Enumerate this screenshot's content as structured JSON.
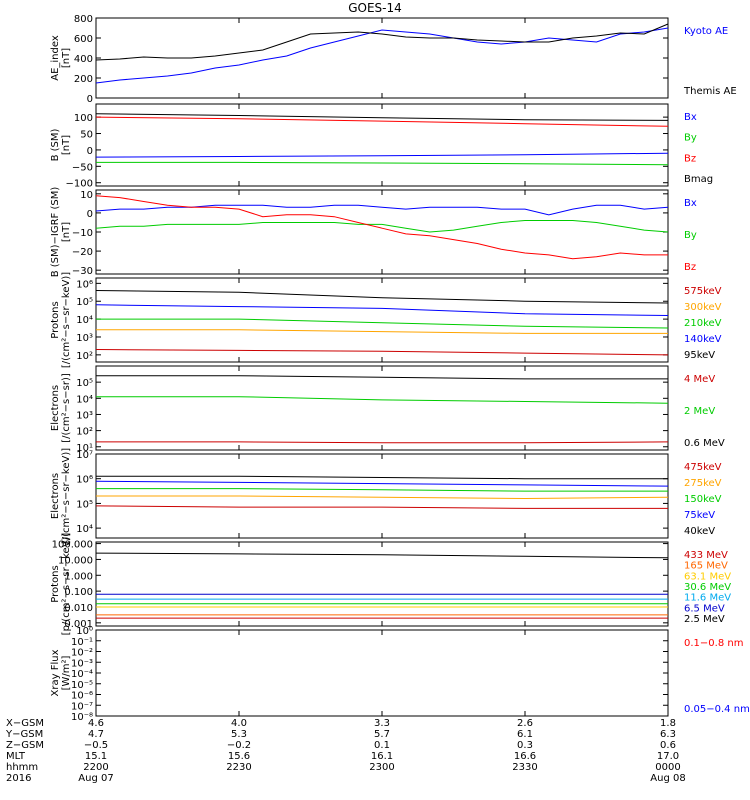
{
  "title": "GOES-14",
  "chart_data": [
    {
      "type": "line",
      "id": "ae",
      "ylabel": [
        "AE_index",
        "[nT]"
      ],
      "ylim": [
        0,
        800
      ],
      "scale": "linear",
      "ticks": [
        0,
        200,
        400,
        600,
        800
      ],
      "tick_labels": [
        "0",
        "200",
        "400",
        "600",
        "800"
      ],
      "x": [
        0,
        5,
        10,
        15,
        20,
        25,
        30,
        35,
        40,
        45,
        50,
        55,
        60,
        65,
        70,
        75,
        80,
        85,
        90,
        95,
        100,
        105,
        110,
        115,
        120
      ],
      "series": [
        {
          "name": "Kyoto AE",
          "color": "#0000ff",
          "values": [
            150,
            180,
            200,
            220,
            250,
            300,
            330,
            380,
            420,
            500,
            560,
            620,
            680,
            660,
            640,
            600,
            560,
            540,
            560,
            600,
            580,
            560,
            640,
            660,
            700
          ]
        },
        {
          "name": "Themis AE",
          "color": "#000000",
          "values": [
            380,
            390,
            410,
            400,
            400,
            420,
            450,
            480,
            560,
            640,
            650,
            660,
            640,
            610,
            600,
            600,
            580,
            570,
            560,
            560,
            600,
            620,
            650,
            640,
            740
          ]
        }
      ]
    },
    {
      "type": "line",
      "id": "bsm",
      "ylabel": [
        "B (SM)",
        "[nT]"
      ],
      "ylim": [
        -110,
        140
      ],
      "scale": "linear",
      "ticks": [
        -100,
        -50,
        0,
        50,
        100
      ],
      "tick_labels": [
        "−100",
        "−50",
        "0",
        "50",
        "100"
      ],
      "x": [
        0,
        30,
        60,
        90,
        120
      ],
      "series": [
        {
          "name": "Bx",
          "color": "#0000ff",
          "values": [
            -22,
            -20,
            -18,
            -15,
            -10
          ]
        },
        {
          "name": "By",
          "color": "#00cc00",
          "values": [
            -38,
            -38,
            -40,
            -42,
            -45
          ]
        },
        {
          "name": "Bz",
          "color": "#ff0000",
          "values": [
            100,
            95,
            88,
            80,
            72
          ]
        },
        {
          "name": "Bmag",
          "color": "#000000",
          "values": [
            110,
            105,
            98,
            92,
            90
          ]
        }
      ]
    },
    {
      "type": "line",
      "id": "bigrf",
      "ylabel": [
        "B (SM)−IGRF (SM)",
        "[nT]"
      ],
      "ylim": [
        -32,
        12
      ],
      "scale": "linear",
      "ticks": [
        -30,
        -20,
        -10,
        0,
        10
      ],
      "tick_labels": [
        "−30",
        "−20",
        "−10",
        "0",
        "10"
      ],
      "x": [
        0,
        5,
        10,
        15,
        20,
        25,
        30,
        35,
        40,
        45,
        50,
        55,
        60,
        65,
        70,
        75,
        80,
        85,
        90,
        95,
        100,
        105,
        110,
        115,
        120
      ],
      "series": [
        {
          "name": "Bx",
          "color": "#0000ff",
          "values": [
            1,
            2,
            2,
            3,
            3,
            4,
            4,
            4,
            3,
            3,
            4,
            4,
            3,
            2,
            3,
            3,
            3,
            2,
            2,
            -1,
            2,
            4,
            4,
            2,
            3
          ]
        },
        {
          "name": "By",
          "color": "#00cc00",
          "values": [
            -8,
            -7,
            -7,
            -6,
            -6,
            -6,
            -6,
            -5,
            -5,
            -5,
            -5,
            -6,
            -6,
            -8,
            -10,
            -9,
            -7,
            -5,
            -4,
            -4,
            -4,
            -5,
            -7,
            -9,
            -10
          ]
        },
        {
          "name": "Bz",
          "color": "#ff0000",
          "values": [
            9,
            8,
            6,
            4,
            3,
            3,
            2,
            -2,
            -1,
            -1,
            -2,
            -5,
            -8,
            -11,
            -12,
            -14,
            -16,
            -19,
            -21,
            -22,
            -24,
            -23,
            -21,
            -22,
            -22
          ]
        }
      ]
    },
    {
      "type": "line",
      "id": "protons_low",
      "ylabel": [
        "Protons",
        "[/(cm²−s−sr−keV)]"
      ],
      "ylim_log": [
        1.6,
        6.3
      ],
      "scale": "log",
      "ticks": [
        2,
        3,
        4,
        5,
        6
      ],
      "tick_labels": [
        "10²",
        "10³",
        "10⁴",
        "10⁵",
        "10⁶"
      ],
      "x": [
        0,
        30,
        60,
        90,
        120
      ],
      "series": [
        {
          "name": "575keV",
          "color": "#cc0000",
          "values": [
            2.3,
            2.25,
            2.2,
            2.1,
            2.0
          ]
        },
        {
          "name": "300keV",
          "color": "#ffa500",
          "values": [
            3.4,
            3.4,
            3.3,
            3.2,
            3.2
          ]
        },
        {
          "name": "210keV",
          "color": "#00cc00",
          "values": [
            4.0,
            4.0,
            3.8,
            3.6,
            3.5
          ]
        },
        {
          "name": "140keV",
          "color": "#0000ff",
          "values": [
            4.8,
            4.7,
            4.6,
            4.3,
            4.2
          ]
        },
        {
          "name": "95keV",
          "color": "#000000",
          "values": [
            5.6,
            5.5,
            5.2,
            5.0,
            4.9
          ]
        }
      ]
    },
    {
      "type": "line",
      "id": "electrons_high",
      "ylabel": [
        "Electrons",
        "[/(cm²−s−sr)]"
      ],
      "ylim_log": [
        0.8,
        6.0
      ],
      "scale": "log",
      "ticks": [
        1,
        2,
        3,
        4,
        5
      ],
      "tick_labels": [
        "10¹",
        "10²",
        "10³",
        "10⁴",
        "10⁵"
      ],
      "x": [
        0,
        30,
        60,
        90,
        120
      ],
      "series": [
        {
          "name": "4 MeV",
          "color": "#cc0000",
          "values": [
            1.3,
            1.3,
            1.25,
            1.25,
            1.3
          ]
        },
        {
          "name": "2 MeV",
          "color": "#00cc00",
          "values": [
            4.1,
            4.1,
            3.9,
            3.8,
            3.7
          ]
        },
        {
          "name": "0.6 MeV",
          "color": "#000000",
          "values": [
            5.4,
            5.4,
            5.3,
            5.2,
            5.2
          ]
        }
      ]
    },
    {
      "type": "line",
      "id": "electrons_low",
      "ylabel": [
        "Electrons",
        "[/(cm²−s−sr−keV)]"
      ],
      "ylim_log": [
        3.6,
        7.0
      ],
      "scale": "log",
      "ticks": [
        4,
        5,
        6,
        7
      ],
      "tick_labels": [
        "10⁴",
        "10⁵",
        "10⁶",
        "10⁷"
      ],
      "x": [
        0,
        30,
        60,
        90,
        120
      ],
      "series": [
        {
          "name": "475keV",
          "color": "#cc0000",
          "values": [
            4.9,
            4.85,
            4.85,
            4.8,
            4.8
          ]
        },
        {
          "name": "275keV",
          "color": "#ffa500",
          "values": [
            5.3,
            5.3,
            5.25,
            5.2,
            5.25
          ]
        },
        {
          "name": "150keV",
          "color": "#00cc00",
          "values": [
            5.6,
            5.6,
            5.55,
            5.5,
            5.5
          ]
        },
        {
          "name": "75keV",
          "color": "#0000ff",
          "values": [
            5.9,
            5.85,
            5.8,
            5.75,
            5.7
          ]
        },
        {
          "name": "40keV",
          "color": "#000000",
          "values": [
            6.1,
            6.1,
            6.05,
            6.0,
            6.0
          ]
        }
      ]
    },
    {
      "type": "line",
      "id": "protons_high",
      "ylabel": [
        "Protons",
        "[p/(cm²−s−sr−keV)]"
      ],
      "ylim_log": [
        -3.2,
        2.1
      ],
      "scale": "log",
      "ticks": [
        -3,
        -2,
        -1,
        0,
        1,
        2
      ],
      "tick_labels": [
        "0.001",
        "0.010",
        "0.100",
        "1.000",
        "10.000",
        "100.000"
      ],
      "x": [
        0,
        30,
        60,
        90,
        120
      ],
      "series": [
        {
          "name": "433 MeV",
          "color": "#cc0000",
          "values": [
            -2.7,
            -2.7,
            -2.7,
            -2.7,
            -2.7
          ]
        },
        {
          "name": "165 MeV",
          "color": "#ff6600",
          "values": [
            -2.5,
            -2.5,
            -2.5,
            -2.5,
            -2.5
          ]
        },
        {
          "name": "63.1 MeV",
          "color": "#ffcc00",
          "values": [
            -2.0,
            -2.0,
            -2.0,
            -2.0,
            -2.0
          ]
        },
        {
          "name": "30.6 MeV",
          "color": "#00cc00",
          "values": [
            -1.8,
            -1.8,
            -1.8,
            -1.8,
            -1.8
          ]
        },
        {
          "name": "11.6 MeV",
          "color": "#00aaee",
          "values": [
            -1.5,
            -1.5,
            -1.5,
            -1.5,
            -1.5
          ]
        },
        {
          "name": "6.5 MeV",
          "color": "#0000cc",
          "values": [
            -1.2,
            -1.2,
            -1.2,
            -1.2,
            -1.2
          ]
        },
        {
          "name": "2.5 MeV",
          "color": "#000000",
          "values": [
            1.4,
            1.35,
            1.3,
            1.2,
            1.1
          ]
        }
      ]
    },
    {
      "type": "line",
      "id": "xray",
      "ylabel": [
        "Xray Flux",
        "[W/m²]"
      ],
      "ylim_log": [
        -8,
        0
      ],
      "scale": "log",
      "ticks": [
        -8,
        -7,
        -6,
        -5,
        -4,
        -3,
        -2,
        -1,
        0
      ],
      "tick_labels": [
        "10⁻⁸",
        "10⁻⁷",
        "10⁻⁶",
        "10⁻⁵",
        "10⁻⁴",
        "10⁻³",
        "10⁻²",
        "10⁻¹",
        "10⁰"
      ],
      "x": [],
      "series": [
        {
          "name": "0.1−0.8 nm",
          "color": "#ff0000",
          "values": []
        },
        {
          "name": "0.05−0.4 nm",
          "color": "#0000ff",
          "values": []
        }
      ]
    }
  ],
  "footer": {
    "rows": [
      {
        "label": "X−GSM",
        "values": [
          "4.6",
          "4.0",
          "3.3",
          "2.6",
          "1.8"
        ]
      },
      {
        "label": "Y−GSM",
        "values": [
          "4.7",
          "5.3",
          "5.7",
          "6.1",
          "6.3"
        ]
      },
      {
        "label": "Z−GSM",
        "values": [
          "−0.5",
          "−0.2",
          "0.1",
          "0.3",
          "0.6"
        ]
      },
      {
        "label": "MLT",
        "values": [
          "15.1",
          "15.6",
          "16.1",
          "16.6",
          "17.0"
        ]
      },
      {
        "label": "hhmm",
        "values": [
          "2200",
          "2230",
          "2300",
          "2330",
          "0000"
        ]
      },
      {
        "label": "2016",
        "values": [
          "Aug 07",
          "",
          "",
          "",
          "Aug 08"
        ]
      }
    ]
  }
}
